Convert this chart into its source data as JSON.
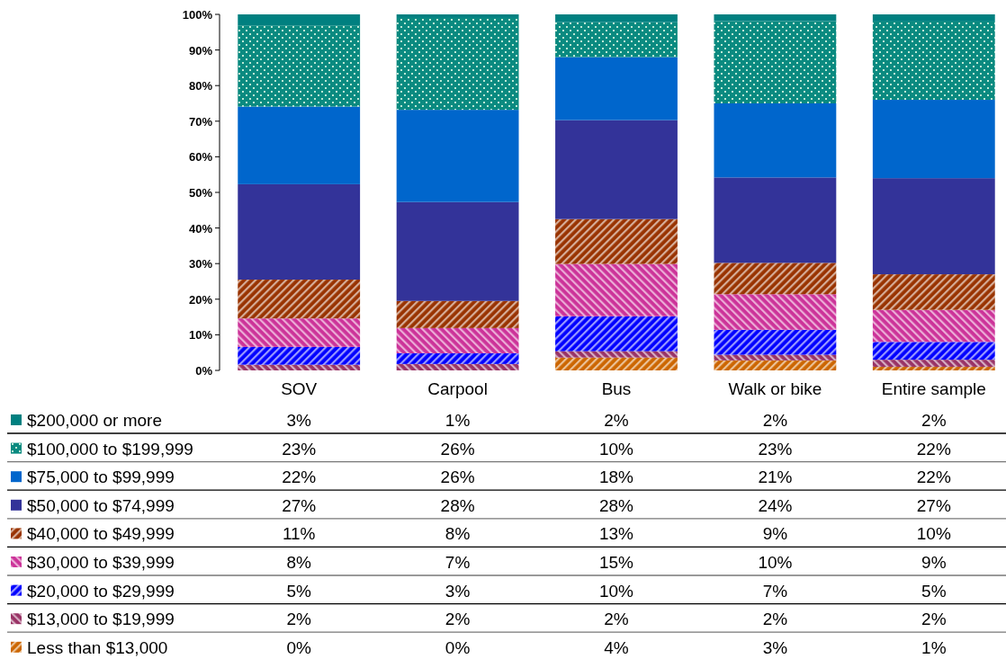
{
  "chart_data": {
    "type": "bar",
    "stacked": true,
    "categories": [
      "SOV",
      "Carpool",
      "Bus",
      "Walk or bike",
      "Entire sample"
    ],
    "series": [
      {
        "name": "Less than $13,000",
        "color": "#cc6600",
        "values": [
          0,
          0,
          3.6,
          2.8,
          1
        ],
        "value_labels": [
          "0%",
          "0%",
          "4%",
          "3%",
          "1%"
        ]
      },
      {
        "name": "$13,000 to $19,999",
        "color": "#993366",
        "values": [
          1.6,
          1.8,
          1.8,
          1.6,
          2
        ],
        "value_labels": [
          "2%",
          "2%",
          "2%",
          "2%",
          "2%"
        ]
      },
      {
        "name": "$20,000 to $29,999",
        "color": "#0000ff",
        "values": [
          5.0,
          3.0,
          9.8,
          7.0,
          5
        ],
        "value_labels": [
          "5%",
          "3%",
          "10%",
          "7%",
          "5%"
        ]
      },
      {
        "name": "$30,000 to $39,999",
        "color": "#cc3399",
        "values": [
          8.0,
          7.1,
          14.7,
          10.0,
          9
        ],
        "value_labels": [
          "8%",
          "7%",
          "15%",
          "10%",
          "9%"
        ]
      },
      {
        "name": "$40,000 to $49,999",
        "color": "#993300",
        "values": [
          10.9,
          7.6,
          12.6,
          8.8,
          10
        ],
        "value_labels": [
          "11%",
          "8%",
          "13%",
          "9%",
          "10%"
        ]
      },
      {
        "name": "$50,000 to $74,999",
        "color": "#333399",
        "values": [
          26.8,
          27.8,
          27.8,
          24.0,
          27
        ],
        "value_labels": [
          "27%",
          "28%",
          "28%",
          "24%",
          "27%"
        ]
      },
      {
        "name": "$75,000 to $99,999",
        "color": "#0066cc",
        "values": [
          21.8,
          25.9,
          17.7,
          20.8,
          22
        ],
        "value_labels": [
          "22%",
          "26%",
          "18%",
          "21%",
          "22%"
        ]
      },
      {
        "name": "$100,000 to $199,999",
        "color": "#0a8a80",
        "values": [
          22.8,
          25.8,
          9.8,
          23.1,
          22
        ],
        "value_labels": [
          "23%",
          "26%",
          "10%",
          "23%",
          "22%"
        ]
      },
      {
        "name": "$200,000 or more",
        "color": "#008080",
        "values": [
          3.1,
          1.0,
          2.2,
          1.9,
          2
        ],
        "value_labels": [
          "3%",
          "1%",
          "2%",
          "2%",
          "2%"
        ]
      }
    ],
    "ylim": [
      0,
      100
    ],
    "yticks": [
      {
        "value": 0,
        "label": "0%"
      },
      {
        "value": 10,
        "label": "10%"
      },
      {
        "value": 20,
        "label": "20%"
      },
      {
        "value": 30,
        "label": "30%"
      },
      {
        "value": 40,
        "label": "40%"
      },
      {
        "value": 50,
        "label": "50%"
      },
      {
        "value": 60,
        "label": "60%"
      },
      {
        "value": 70,
        "label": "70%"
      },
      {
        "value": 80,
        "label": "80%"
      },
      {
        "value": 90,
        "label": "90%"
      },
      {
        "value": 100,
        "label": "100%"
      }
    ],
    "legend": "bottom"
  }
}
